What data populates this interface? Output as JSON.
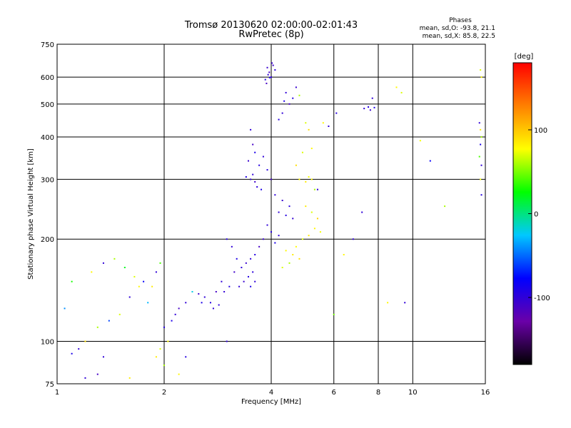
{
  "chart_data": {
    "type": "scatter",
    "title": "Tromsø 20130620 02:00:00-02:01:43",
    "subtitle": "RwPretec (8p)",
    "xlabel": "Frequency [MHz]",
    "ylabel": "Stationary phase Virtual Height [km]",
    "x_scale": "log",
    "y_scale": "log",
    "xlim": [
      1,
      16
    ],
    "ylim": [
      75,
      750
    ],
    "x_ticks": [
      1,
      2,
      4,
      6,
      8,
      10,
      16
    ],
    "x_tick_labels": [
      "1",
      "2",
      "4",
      "6",
      "8",
      "10",
      "16"
    ],
    "y_ticks": [
      75,
      100,
      200,
      300,
      400,
      500,
      600,
      750
    ],
    "y_tick_labels": [
      "75",
      "100",
      "200",
      "300",
      "400",
      "500",
      "600",
      "750"
    ],
    "grid": true,
    "colorbar": {
      "label": "[deg]",
      "range": [
        -180,
        180
      ],
      "ticks": [
        100,
        0,
        -100
      ],
      "tick_labels": [
        "100",
        "0",
        "-100"
      ],
      "colors": [
        "#000000",
        "#6a00a8",
        "#0000ff",
        "#00c8ff",
        "#00ff00",
        "#ffff00",
        "#ff8000",
        "#ff0000"
      ]
    },
    "stats": {
      "heading": "Phases",
      "line_o": "mean, sd,O: -93.8, 21.1",
      "line_x": "mean, sd,X:  85.8, 22.5"
    },
    "series": [
      {
        "values": [
          [
            3.9,
            640,
            -105
          ],
          [
            3.95,
            620,
            -110
          ],
          [
            4.0,
            600,
            -100
          ],
          [
            3.85,
            590,
            -95
          ],
          [
            4.05,
            650,
            -108
          ],
          [
            3.92,
            610,
            -102
          ],
          [
            4.1,
            630,
            -98
          ],
          [
            3.88,
            575,
            -112
          ],
          [
            4.02,
            660,
            -104
          ],
          [
            3.96,
            598,
            -90
          ],
          [
            4.4,
            540,
            -100
          ],
          [
            4.6,
            520,
            -95
          ],
          [
            4.7,
            560,
            -105
          ],
          [
            4.5,
            500,
            -110
          ],
          [
            4.35,
            510,
            -92
          ],
          [
            4.8,
            530,
            60
          ],
          [
            4.3,
            470,
            -100
          ],
          [
            4.2,
            450,
            -95
          ],
          [
            3.5,
            420,
            -100
          ],
          [
            3.55,
            380,
            -110
          ],
          [
            3.6,
            360,
            -90
          ],
          [
            3.45,
            340,
            -105
          ],
          [
            3.7,
            330,
            -95
          ],
          [
            3.5,
            300,
            -100
          ],
          [
            3.6,
            295,
            -108
          ],
          [
            3.4,
            305,
            -92
          ],
          [
            3.55,
            310,
            -100
          ],
          [
            3.65,
            285,
            -98
          ],
          [
            3.8,
            350,
            -100
          ],
          [
            3.9,
            320,
            -95
          ],
          [
            4.0,
            300,
            -110
          ],
          [
            3.75,
            280,
            -90
          ],
          [
            4.1,
            270,
            -100
          ],
          [
            4.3,
            260,
            -105
          ],
          [
            4.5,
            250,
            -98
          ],
          [
            4.2,
            240,
            -100
          ],
          [
            4.4,
            235,
            -95
          ],
          [
            4.6,
            230,
            -102
          ],
          [
            4.8,
            300,
            80
          ],
          [
            5.0,
            295,
            85
          ],
          [
            5.1,
            305,
            75
          ],
          [
            4.9,
            360,
            70
          ],
          [
            5.2,
            370,
            80
          ],
          [
            4.7,
            330,
            90
          ],
          [
            5.3,
            280,
            60
          ],
          [
            5.0,
            250,
            85
          ],
          [
            5.2,
            240,
            70
          ],
          [
            5.4,
            230,
            95
          ],
          [
            5.5,
            210,
            75
          ],
          [
            5.3,
            215,
            80
          ],
          [
            5.1,
            205,
            85
          ],
          [
            4.9,
            200,
            70
          ],
          [
            4.7,
            190,
            78
          ],
          [
            4.6,
            180,
            85
          ],
          [
            4.5,
            170,
            60
          ],
          [
            4.4,
            185,
            80
          ],
          [
            4.8,
            175,
            90
          ],
          [
            4.3,
            165,
            70
          ],
          [
            3.9,
            220,
            -100
          ],
          [
            4.0,
            210,
            -95
          ],
          [
            3.8,
            200,
            -105
          ],
          [
            4.1,
            195,
            -90
          ],
          [
            4.2,
            205,
            -100
          ],
          [
            3.7,
            190,
            -110
          ],
          [
            3.6,
            180,
            -95
          ],
          [
            3.5,
            175,
            -100
          ],
          [
            3.4,
            170,
            -105
          ],
          [
            3.55,
            160,
            -98
          ],
          [
            3.3,
            165,
            -100
          ],
          [
            3.2,
            175,
            -92
          ],
          [
            3.35,
            150,
            -105
          ],
          [
            3.45,
            155,
            -95
          ],
          [
            3.25,
            145,
            -100
          ],
          [
            3.15,
            160,
            -108
          ],
          [
            3.5,
            145,
            -90
          ],
          [
            3.6,
            150,
            -100
          ],
          [
            3.1,
            190,
            -100
          ],
          [
            3.0,
            200,
            -95
          ],
          [
            2.9,
            150,
            -100
          ],
          [
            2.8,
            140,
            -110
          ],
          [
            2.7,
            130,
            -95
          ],
          [
            2.6,
            135,
            -100
          ],
          [
            2.5,
            138,
            -105
          ],
          [
            2.55,
            130,
            -90
          ],
          [
            2.75,
            125,
            -100
          ],
          [
            2.85,
            128,
            -98
          ],
          [
            2.95,
            140,
            -102
          ],
          [
            3.05,
            145,
            -95
          ],
          [
            2.4,
            140,
            -20
          ],
          [
            2.3,
            130,
            -100
          ],
          [
            2.2,
            125,
            -110
          ],
          [
            2.1,
            115,
            -90
          ],
          [
            2.15,
            120,
            -100
          ],
          [
            2.0,
            110,
            -95
          ],
          [
            2.05,
            100,
            80
          ],
          [
            1.95,
            95,
            70
          ],
          [
            1.9,
            90,
            85
          ],
          [
            2.0,
            85,
            60
          ],
          [
            1.8,
            130,
            -30
          ],
          [
            1.7,
            145,
            80
          ],
          [
            1.6,
            135,
            -100
          ],
          [
            1.5,
            120,
            70
          ],
          [
            1.4,
            115,
            -60
          ],
          [
            1.3,
            110,
            60
          ],
          [
            1.2,
            100,
            90
          ],
          [
            1.15,
            95,
            -100
          ],
          [
            1.1,
            92,
            -90
          ],
          [
            1.05,
            125,
            -40
          ],
          [
            1.1,
            150,
            30
          ],
          [
            1.25,
            160,
            80
          ],
          [
            1.35,
            170,
            -100
          ],
          [
            1.45,
            175,
            60
          ],
          [
            1.55,
            165,
            20
          ],
          [
            1.65,
            155,
            70
          ],
          [
            1.75,
            150,
            -80
          ],
          [
            1.85,
            145,
            85
          ],
          [
            1.9,
            160,
            -100
          ],
          [
            1.95,
            170,
            40
          ],
          [
            7.3,
            485,
            -100
          ],
          [
            7.5,
            490,
            -95
          ],
          [
            7.6,
            480,
            -105
          ],
          [
            7.8,
            488,
            -90
          ],
          [
            7.7,
            520,
            -100
          ],
          [
            9.0,
            560,
            80
          ],
          [
            9.3,
            540,
            70
          ],
          [
            10.5,
            390,
            75
          ],
          [
            11.2,
            340,
            -80
          ],
          [
            12.3,
            250,
            60
          ],
          [
            15.5,
            630,
            70
          ],
          [
            15.6,
            600,
            80
          ],
          [
            15.4,
            440,
            -100
          ],
          [
            15.5,
            420,
            85
          ],
          [
            15.6,
            400,
            60
          ],
          [
            15.5,
            380,
            -90
          ],
          [
            15.4,
            350,
            40
          ],
          [
            15.6,
            330,
            -100
          ],
          [
            15.5,
            300,
            75
          ],
          [
            15.6,
            270,
            -95
          ],
          [
            5.6,
            440,
            80
          ],
          [
            5.8,
            430,
            -100
          ],
          [
            6.1,
            470,
            -95
          ],
          [
            5.0,
            440,
            70
          ],
          [
            5.1,
            420,
            90
          ],
          [
            5.4,
            280,
            -100
          ],
          [
            5.2,
            300,
            80
          ],
          [
            7.2,
            240,
            -100
          ],
          [
            6.8,
            200,
            -100
          ],
          [
            6.4,
            180,
            80
          ],
          [
            9.5,
            130,
            -100
          ],
          [
            8.5,
            130,
            80
          ],
          [
            6.0,
            120,
            50
          ],
          [
            3.0,
            100,
            -100
          ],
          [
            2.3,
            90,
            -95
          ],
          [
            2.2,
            80,
            80
          ],
          [
            1.35,
            90,
            -100
          ],
          [
            1.3,
            80,
            -110
          ],
          [
            1.2,
            78,
            -100
          ],
          [
            1.6,
            78,
            85
          ]
        ]
      }
    ]
  }
}
